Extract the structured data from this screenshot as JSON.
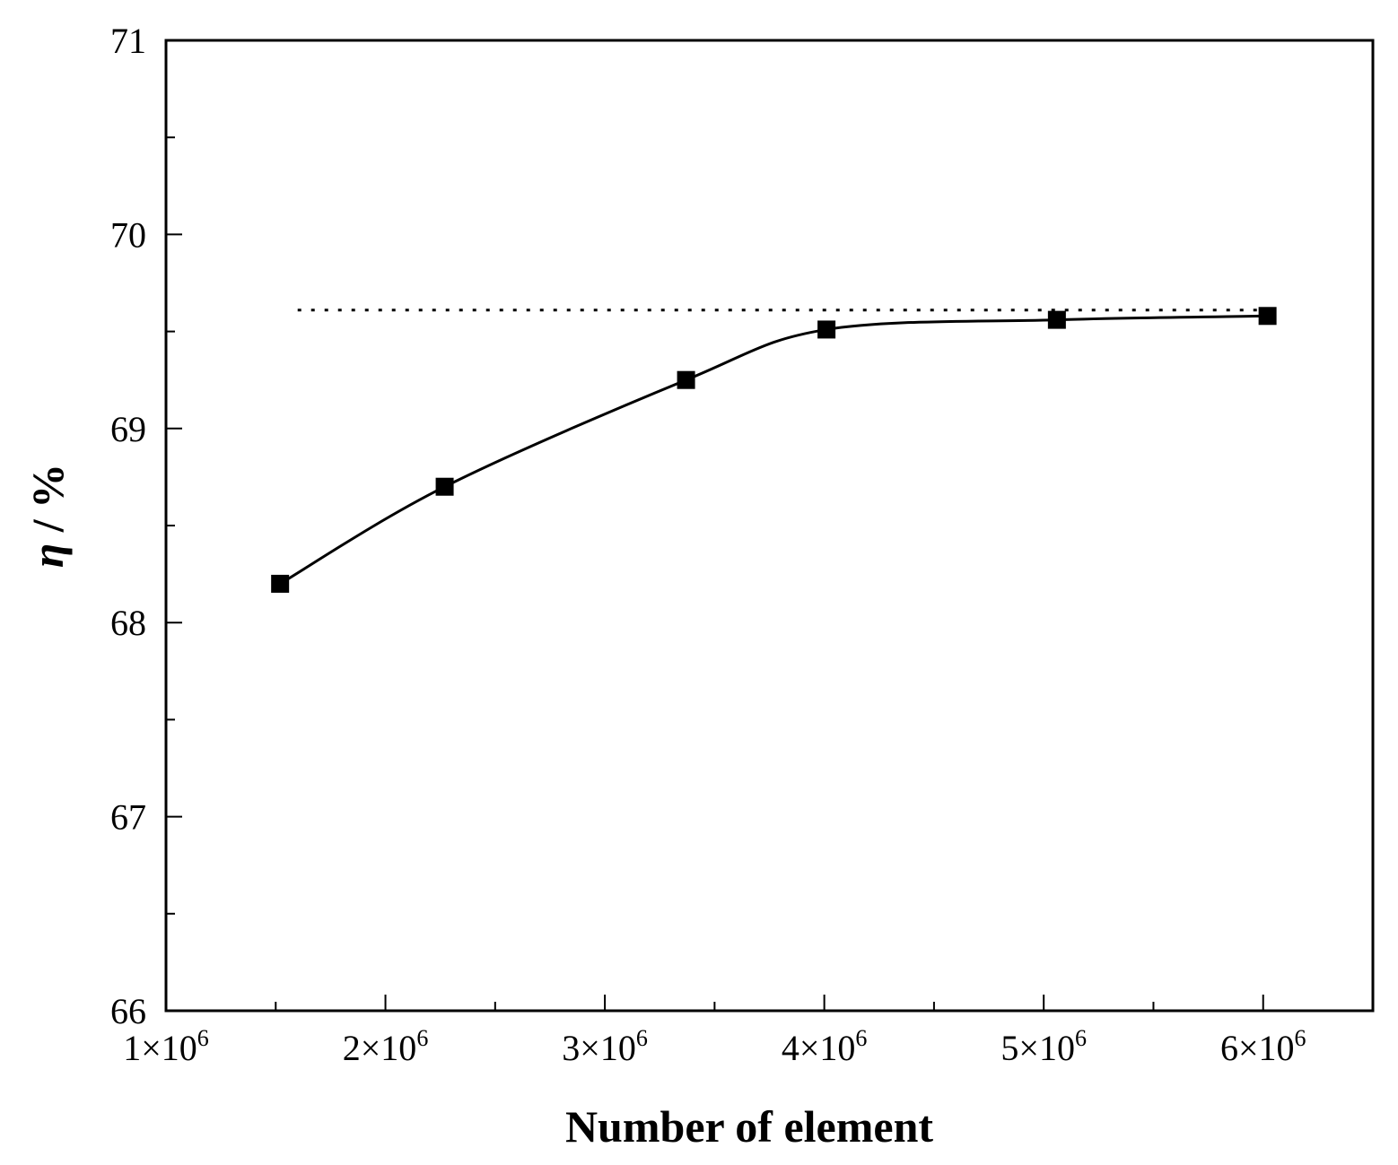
{
  "chart_data": {
    "type": "line",
    "xlabel": "Number of element",
    "ylabel_symbol": "η",
    "ylabel_unit": " / %",
    "xlim": [
      1000000,
      6500000
    ],
    "ylim": [
      66,
      71
    ],
    "x_ticks": [
      {
        "value": 1000000,
        "mantissa": "1",
        "times": "×",
        "base": "10",
        "exp": "6"
      },
      {
        "value": 2000000,
        "mantissa": "2",
        "times": "×",
        "base": "10",
        "exp": "6"
      },
      {
        "value": 3000000,
        "mantissa": "3",
        "times": "×",
        "base": "10",
        "exp": "6"
      },
      {
        "value": 4000000,
        "mantissa": "4",
        "times": "×",
        "base": "10",
        "exp": "6"
      },
      {
        "value": 5000000,
        "mantissa": "5",
        "times": "×",
        "base": "10",
        "exp": "6"
      },
      {
        "value": 6000000,
        "mantissa": "6",
        "times": "×",
        "base": "10",
        "exp": "6"
      }
    ],
    "x_minor_ticks": [
      1500000,
      2500000,
      3500000,
      4500000,
      5500000
    ],
    "y_ticks": [
      {
        "value": 66,
        "label": "66"
      },
      {
        "value": 67,
        "label": "67"
      },
      {
        "value": 68,
        "label": "68"
      },
      {
        "value": 69,
        "label": "69"
      },
      {
        "value": 70,
        "label": "70"
      },
      {
        "value": 71,
        "label": "71"
      }
    ],
    "y_minor_ticks": [
      66.5,
      67.5,
      68.5,
      69.5,
      70.5
    ],
    "grid": false,
    "legend": "none",
    "series": [
      {
        "marker": "square",
        "color": "#000000",
        "line": "smooth",
        "points": [
          {
            "x": 1520000,
            "y": 68.2
          },
          {
            "x": 2270000,
            "y": 68.7
          },
          {
            "x": 3370000,
            "y": 69.25
          },
          {
            "x": 4010000,
            "y": 69.51
          },
          {
            "x": 5060000,
            "y": 69.56
          },
          {
            "x": 6020000,
            "y": 69.58
          }
        ]
      }
    ],
    "reference_line": {
      "style": "dotted",
      "color": "#000000",
      "x_start": 1600000,
      "x_end": 6050000,
      "y": 69.61
    }
  }
}
